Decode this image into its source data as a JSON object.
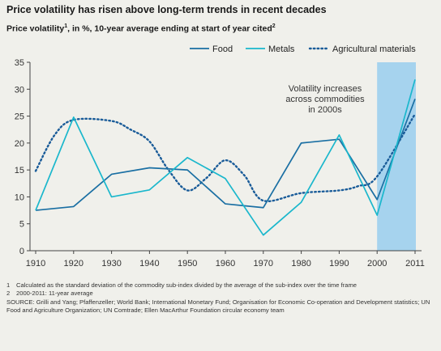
{
  "title": "Price volatility has risen above long-term trends in recent decades",
  "subtitle_parts": {
    "prefix": "Price volatility",
    "sup1": "1",
    "middle": ", in %, 10-year average ending at start of year cited",
    "sup2": "2"
  },
  "colors": {
    "background": "#f0f0eb",
    "food": "#1a6fa3",
    "metals": "#1ab7cc",
    "agri": "#1a5c99",
    "highlight": "#a6d3ee",
    "axis": "#444444"
  },
  "chart_data": {
    "type": "line",
    "categories": [
      "1910",
      "1920",
      "1930",
      "1940",
      "1950",
      "1960",
      "1970",
      "1980",
      "1990",
      "2000",
      "2011"
    ],
    "ylim": [
      0,
      35
    ],
    "yticks": [
      0,
      5,
      10,
      15,
      20,
      25,
      30,
      35
    ],
    "grid": false,
    "legend_position": "top-right",
    "series": [
      {
        "name": "Food",
        "style": "solid",
        "values": [
          7.5,
          8.2,
          14.2,
          15.4,
          15.0,
          8.7,
          8.0,
          20.0,
          20.7,
          9.5,
          28.2
        ]
      },
      {
        "name": "Metals",
        "style": "solid",
        "values": [
          7.5,
          24.8,
          10.0,
          11.3,
          17.3,
          13.4,
          2.9,
          9.0,
          21.5,
          6.6,
          31.8
        ]
      },
      {
        "name": "Agricultural materials",
        "style": "dotted",
        "x": [
          1910,
          1915,
          1920,
          1930,
          1935,
          1940,
          1945,
          1950,
          1955,
          1960,
          1965,
          1970,
          1980,
          1990,
          1995,
          2000,
          2011
        ],
        "values": [
          14.8,
          21.5,
          24.3,
          24.1,
          22.5,
          20.3,
          15.0,
          11.2,
          13.5,
          16.8,
          14.0,
          9.3,
          10.7,
          11.2,
          12.0,
          13.8,
          25.4
        ]
      }
    ],
    "highlight_band": {
      "from": "2000",
      "to": "2011"
    },
    "annotation": [
      "Volatility increases",
      "across commodities",
      "in 2000s"
    ]
  },
  "footnotes": [
    {
      "num": "1",
      "text": "Calculated as the standard deviation of the commodity sub-index divided by the average of the sub-index over the time frame"
    },
    {
      "num": "2",
      "text": "2000-2011: 11-year average"
    }
  ],
  "source": "SOURCE: Grilli and Yang; Pfaffenzeller; World Bank; International Monetary Fund; Organisation for Economic Co-operation and Development statistics; UN Food and Agriculture Organization; UN Comtrade; Ellen MacArthur Foundation circular economy team"
}
